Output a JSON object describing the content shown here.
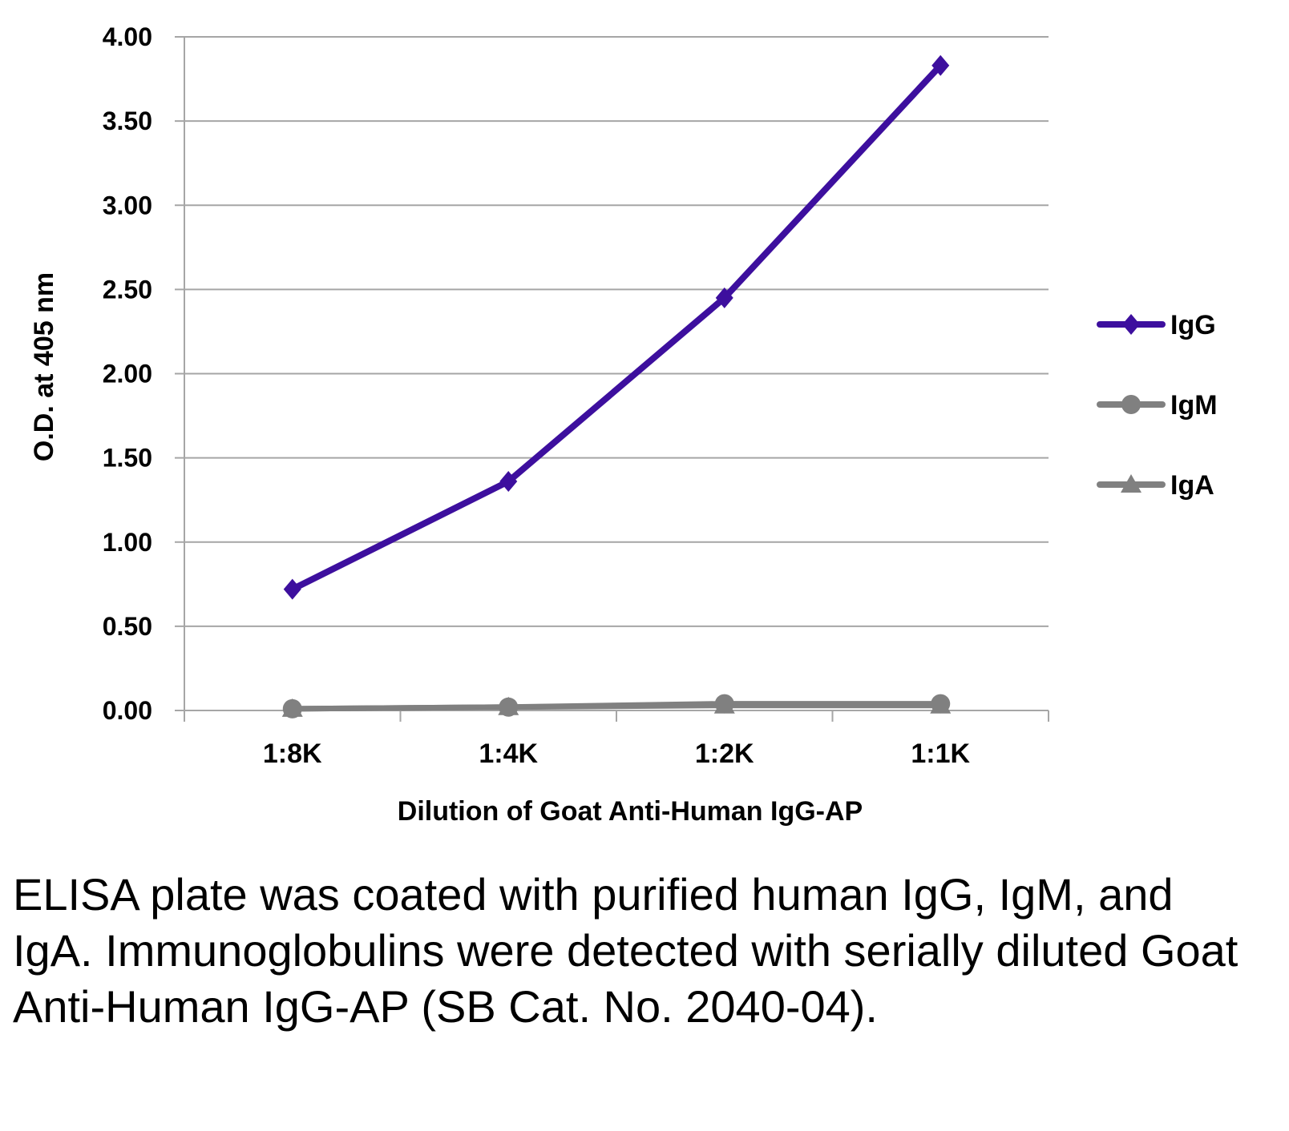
{
  "chart_data": {
    "type": "line",
    "categories": [
      "1:8K",
      "1:4K",
      "1:2K",
      "1:1K"
    ],
    "series": [
      {
        "name": "IgG",
        "values": [
          0.72,
          1.36,
          2.45,
          3.83
        ],
        "color": "#3d0f9e",
        "marker": "diamond"
      },
      {
        "name": "IgM",
        "values": [
          0.01,
          0.02,
          0.04,
          0.04
        ],
        "color": "#808080",
        "marker": "circle"
      },
      {
        "name": "IgA",
        "values": [
          0.01,
          0.02,
          0.03,
          0.03
        ],
        "color": "#808080",
        "marker": "triangle"
      }
    ],
    "xlabel": "Dilution of Goat Anti-Human IgG-AP",
    "ylabel": "O.D. at 405 nm",
    "ylim": [
      0,
      4
    ],
    "yticks": [
      "0.00",
      "0.50",
      "1.00",
      "1.50",
      "2.00",
      "2.50",
      "3.00",
      "3.50",
      "4.00"
    ],
    "grid": true,
    "legend_position": "right"
  },
  "caption": "ELISA plate was coated with purified human IgG, IgM, and IgA.  Immunoglobulins were detected with serially diluted Goat Anti-Human IgG-AP (SB Cat. No. 2040-04)."
}
